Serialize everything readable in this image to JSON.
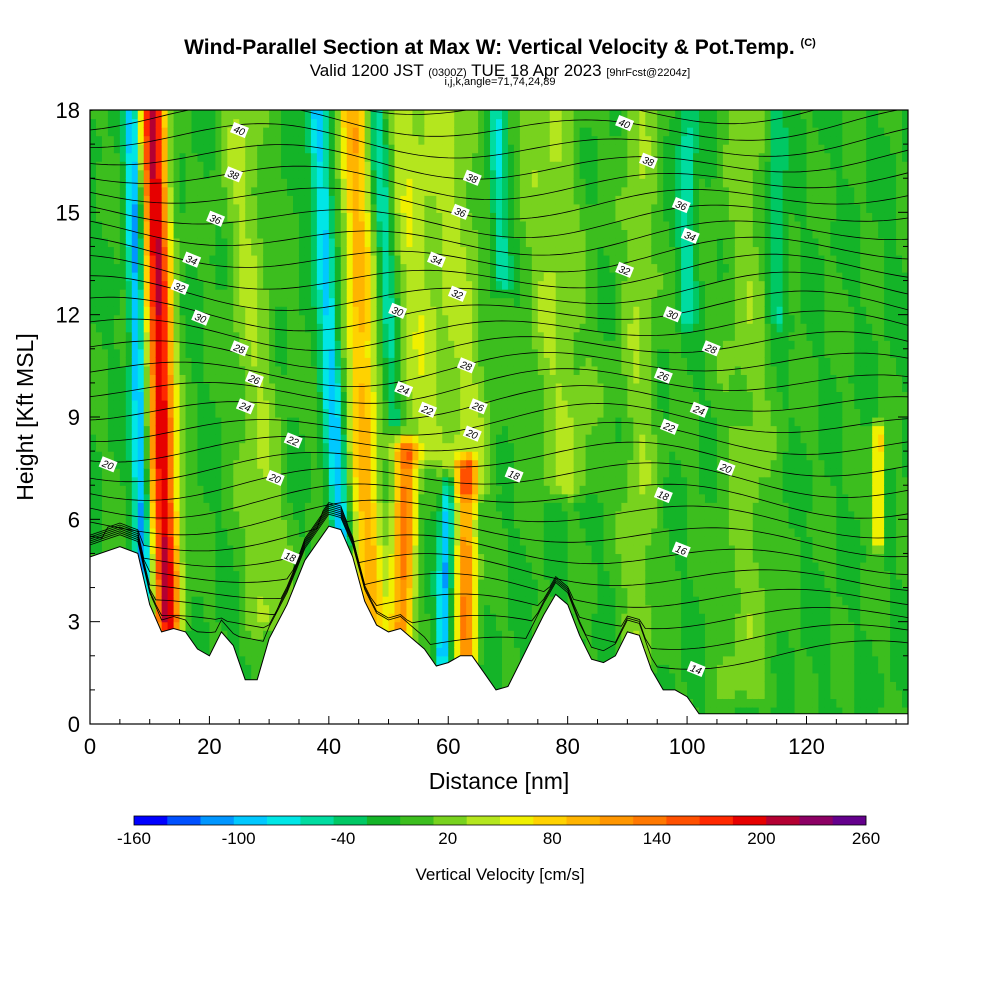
{
  "title": {
    "main": "Wind-Parallel Section at Max W: Vertical Velocity & Pot.Temp.",
    "main_suffix": "(C)",
    "valid_prefix": "Valid 1200 JST",
    "valid_z": "(0300Z)",
    "valid_date": "TUE 18 Apr 2023",
    "forecast": "[9hrFcst@2204z]",
    "indices": "i,j,k,angle=71,74,24,89"
  },
  "chart_data": {
    "type": "heatmap",
    "xlabel": "Distance [nm]",
    "ylabel": "Height [Kft MSL]",
    "xlim": [
      0,
      137
    ],
    "ylim": [
      0,
      18
    ],
    "x_ticks": [
      0,
      20,
      40,
      60,
      80,
      100,
      120
    ],
    "y_ticks": [
      0,
      3,
      6,
      9,
      12,
      15,
      18
    ],
    "colorbar": {
      "label": "Vertical Velocity [cm/s]",
      "min": -160,
      "max": 260,
      "step": 20,
      "tick_labels": [
        "-160",
        "-100",
        "-40",
        "20",
        "80",
        "140",
        "200",
        "260"
      ],
      "tick_values": [
        -160,
        -100,
        -40,
        20,
        80,
        140,
        200,
        260
      ],
      "colors": [
        "#0000ff",
        "#0050ff",
        "#0096ff",
        "#00c8ff",
        "#00e6e6",
        "#00dca0",
        "#00c864",
        "#14b428",
        "#3cbe1e",
        "#78d21e",
        "#b4e61e",
        "#f0f000",
        "#ffd200",
        "#ffb400",
        "#ff9600",
        "#ff7800",
        "#ff5000",
        "#ff2800",
        "#e60000",
        "#b40032",
        "#8c0064",
        "#64008c"
      ]
    },
    "terrain": [
      [
        0,
        4.9
      ],
      [
        5,
        5.2
      ],
      [
        8,
        5
      ],
      [
        10,
        3.5
      ],
      [
        12,
        2.7
      ],
      [
        14,
        2.8
      ],
      [
        16,
        2.7
      ],
      [
        18,
        2.2
      ],
      [
        20,
        2.0
      ],
      [
        22,
        2.7
      ],
      [
        24,
        2.3
      ],
      [
        26,
        1.3
      ],
      [
        28,
        1.3
      ],
      [
        30,
        2.5
      ],
      [
        33,
        3.5
      ],
      [
        36,
        4.8
      ],
      [
        38,
        5.3
      ],
      [
        40,
        5.8
      ],
      [
        42,
        5.7
      ],
      [
        44,
        4.9
      ],
      [
        46,
        3.6
      ],
      [
        48,
        2.9
      ],
      [
        50,
        2.7
      ],
      [
        52,
        2.8
      ],
      [
        54,
        2.5
      ],
      [
        56,
        2.2
      ],
      [
        58,
        1.7
      ],
      [
        60,
        1.8
      ],
      [
        62,
        2.0
      ],
      [
        64,
        2.0
      ],
      [
        66,
        1.5
      ],
      [
        68,
        1.0
      ],
      [
        70,
        1.1
      ],
      [
        72,
        1.8
      ],
      [
        74,
        2.5
      ],
      [
        76,
        3.2
      ],
      [
        78,
        3.8
      ],
      [
        80,
        3.5
      ],
      [
        82,
        2.6
      ],
      [
        84,
        1.9
      ],
      [
        86,
        1.8
      ],
      [
        88,
        2.0
      ],
      [
        90,
        2.7
      ],
      [
        92,
        2.6
      ],
      [
        94,
        1.6
      ],
      [
        96,
        1.0
      ],
      [
        98,
        1.0
      ],
      [
        100,
        0.8
      ],
      [
        102,
        0.3
      ],
      [
        110,
        0.3
      ],
      [
        137,
        0.3
      ]
    ],
    "updrafts": [
      {
        "x": 13,
        "ymin": 3,
        "ymax": 18,
        "lean": -2.5,
        "width": 2.2,
        "peak": 220
      },
      {
        "x": 30,
        "ymin": 3,
        "ymax": 18,
        "lean": -5,
        "width": 3.5,
        "peak": 40
      },
      {
        "x": 47,
        "ymin": 3,
        "ymax": 18,
        "lean": -3,
        "width": 2.5,
        "peak": 110
      },
      {
        "x": 52,
        "ymin": 2.5,
        "ymax": 8,
        "lean": 1,
        "width": 2.0,
        "peak": 140
      },
      {
        "x": 63,
        "ymin": 2,
        "ymax": 7.5,
        "lean": 0,
        "width": 1.8,
        "peak": 140
      },
      {
        "x": 55,
        "ymin": 8,
        "ymax": 18,
        "lean": -2,
        "width": 3.5,
        "peak": 50
      },
      {
        "x": 63,
        "ymin": 7,
        "ymax": 18,
        "lean": -3,
        "width": 4.5,
        "peak": 45
      },
      {
        "x": 80,
        "ymin": 7,
        "ymax": 18,
        "lean": -4,
        "width": 5,
        "peak": 40
      },
      {
        "x": 92,
        "ymin": 2,
        "ymax": 18,
        "lean": 0,
        "width": 3,
        "peak": 35
      },
      {
        "x": 110,
        "ymin": 1,
        "ymax": 18,
        "lean": 0,
        "width": 4,
        "peak": 30
      },
      {
        "x": 132,
        "ymin": 5.5,
        "ymax": 8.5,
        "lean": 0,
        "width": 0.8,
        "peak": 120
      }
    ],
    "downdrafts": [
      {
        "x": 9,
        "ymin": 3.5,
        "ymax": 18,
        "lean": -2,
        "width": 1.3,
        "peak": -110
      },
      {
        "x": 42,
        "ymin": 5.5,
        "ymax": 18,
        "lean": -4,
        "width": 1.6,
        "peak": -90
      },
      {
        "x": 59,
        "ymin": 2,
        "ymax": 7,
        "lean": 1,
        "width": 1.2,
        "peak": -100
      },
      {
        "x": 51,
        "ymin": 9,
        "ymax": 18,
        "lean": -3,
        "width": 1.5,
        "peak": -60
      },
      {
        "x": 69,
        "ymin": 13,
        "ymax": 18,
        "lean": -1,
        "width": 1.5,
        "peak": -60
      },
      {
        "x": 100,
        "ymin": 12,
        "ymax": 18,
        "lean": 0,
        "width": 1.5,
        "peak": -50
      },
      {
        "x": 115,
        "ymin": 12,
        "ymax": 18,
        "lean": 0,
        "width": 1.5,
        "peak": -45
      }
    ],
    "theta_labels": [
      {
        "text": "40",
        "x": 25,
        "y": 17.4
      },
      {
        "text": "38",
        "x": 24,
        "y": 16.1
      },
      {
        "text": "36",
        "x": 21,
        "y": 14.8
      },
      {
        "text": "34",
        "x": 17,
        "y": 13.6
      },
      {
        "text": "32",
        "x": 15,
        "y": 12.8
      },
      {
        "text": "30",
        "x": 18.5,
        "y": 11.9
      },
      {
        "text": "28",
        "x": 25,
        "y": 11.0
      },
      {
        "text": "26",
        "x": 27.5,
        "y": 10.1
      },
      {
        "text": "24",
        "x": 26,
        "y": 9.3
      },
      {
        "text": "22",
        "x": 34,
        "y": 8.3
      },
      {
        "text": "20",
        "x": 31,
        "y": 7.2
      },
      {
        "text": "20",
        "x": 3,
        "y": 7.6
      },
      {
        "text": "18",
        "x": 33.5,
        "y": 4.9
      },
      {
        "text": "38",
        "x": 64,
        "y": 16.0
      },
      {
        "text": "36",
        "x": 62,
        "y": 15.0
      },
      {
        "text": "34",
        "x": 58,
        "y": 13.6
      },
      {
        "text": "32",
        "x": 61.5,
        "y": 12.6
      },
      {
        "text": "30",
        "x": 51.5,
        "y": 12.1
      },
      {
        "text": "28",
        "x": 63,
        "y": 10.5
      },
      {
        "text": "26",
        "x": 65,
        "y": 9.3
      },
      {
        "text": "24",
        "x": 52.5,
        "y": 9.8
      },
      {
        "text": "22",
        "x": 56.5,
        "y": 9.2
      },
      {
        "text": "20",
        "x": 64,
        "y": 8.5
      },
      {
        "text": "18",
        "x": 71,
        "y": 7.3
      },
      {
        "text": "40",
        "x": 89.5,
        "y": 17.6
      },
      {
        "text": "38",
        "x": 93.5,
        "y": 16.5
      },
      {
        "text": "36",
        "x": 99,
        "y": 15.2
      },
      {
        "text": "34",
        "x": 100.5,
        "y": 14.3
      },
      {
        "text": "32",
        "x": 89.5,
        "y": 13.3
      },
      {
        "text": "30",
        "x": 97.5,
        "y": 12.0
      },
      {
        "text": "28",
        "x": 104,
        "y": 11.0
      },
      {
        "text": "26",
        "x": 96,
        "y": 10.2
      },
      {
        "text": "24",
        "x": 102,
        "y": 9.2
      },
      {
        "text": "22",
        "x": 97,
        "y": 8.7
      },
      {
        "text": "20",
        "x": 106.5,
        "y": 7.5
      },
      {
        "text": "18",
        "x": 96,
        "y": 6.7
      },
      {
        "text": "16",
        "x": 99,
        "y": 5.1
      },
      {
        "text": "14",
        "x": 101.5,
        "y": 1.6
      }
    ]
  }
}
